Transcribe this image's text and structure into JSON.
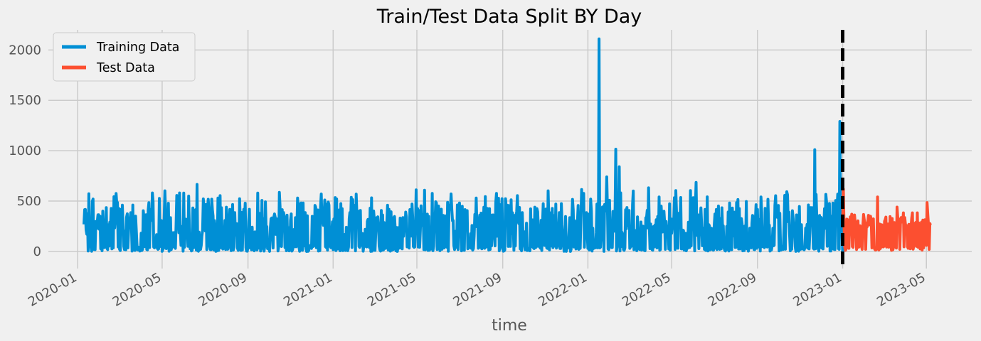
{
  "chart_data": {
    "type": "line",
    "title": "Train/Test Data Split BY Day",
    "xlabel": "time",
    "ylabel": "",
    "x_range": [
      "2019-11-20",
      "2023-07-05"
    ],
    "ylim": [
      -170,
      2200
    ],
    "y_ticks": [
      0,
      500,
      1000,
      1500,
      2000
    ],
    "x_ticks": [
      "2020-01",
      "2020-05",
      "2020-09",
      "2021-01",
      "2021-05",
      "2021-09",
      "2022-01",
      "2022-05",
      "2022-09",
      "2023-01",
      "2023-05"
    ],
    "grid": true,
    "legend_position": "top-left",
    "split_line": {
      "date": "2023-01-01",
      "style": "dashed",
      "color": "#000000"
    },
    "series": [
      {
        "name": "Training Data",
        "color": "#008fd5",
        "date_range": [
          "2020-01-10",
          "2023-01-01"
        ],
        "typical_low": [
          0,
          60
        ],
        "typical_high": [
          150,
          650
        ],
        "peaks": [
          {
            "date": "2020-01-15",
            "value": 375
          },
          {
            "date": "2020-06-01",
            "value": 580
          },
          {
            "date": "2020-06-20",
            "value": 665
          },
          {
            "date": "2020-07-20",
            "value": 530
          },
          {
            "date": "2020-12-25",
            "value": 490
          },
          {
            "date": "2021-07-25",
            "value": 530
          },
          {
            "date": "2022-01-05",
            "value": 520
          },
          {
            "date": "2022-01-17",
            "value": 2110
          },
          {
            "date": "2022-01-28",
            "value": 740
          },
          {
            "date": "2022-02-10",
            "value": 1015
          },
          {
            "date": "2022-02-15",
            "value": 840
          },
          {
            "date": "2022-06-05",
            "value": 685
          },
          {
            "date": "2022-11-22",
            "value": 1010
          },
          {
            "date": "2022-12-28",
            "value": 1290
          }
        ]
      },
      {
        "name": "Test Data",
        "color": "#fc4f30",
        "date_range": [
          "2023-01-01",
          "2023-05-07"
        ],
        "typical_low": [
          10,
          60
        ],
        "typical_high": [
          240,
          400
        ],
        "peaks": [
          {
            "date": "2023-01-02",
            "value": 620
          },
          {
            "date": "2023-02-20",
            "value": 540
          },
          {
            "date": "2023-03-20",
            "value": 440
          },
          {
            "date": "2023-05-02",
            "value": 485
          }
        ]
      }
    ]
  }
}
